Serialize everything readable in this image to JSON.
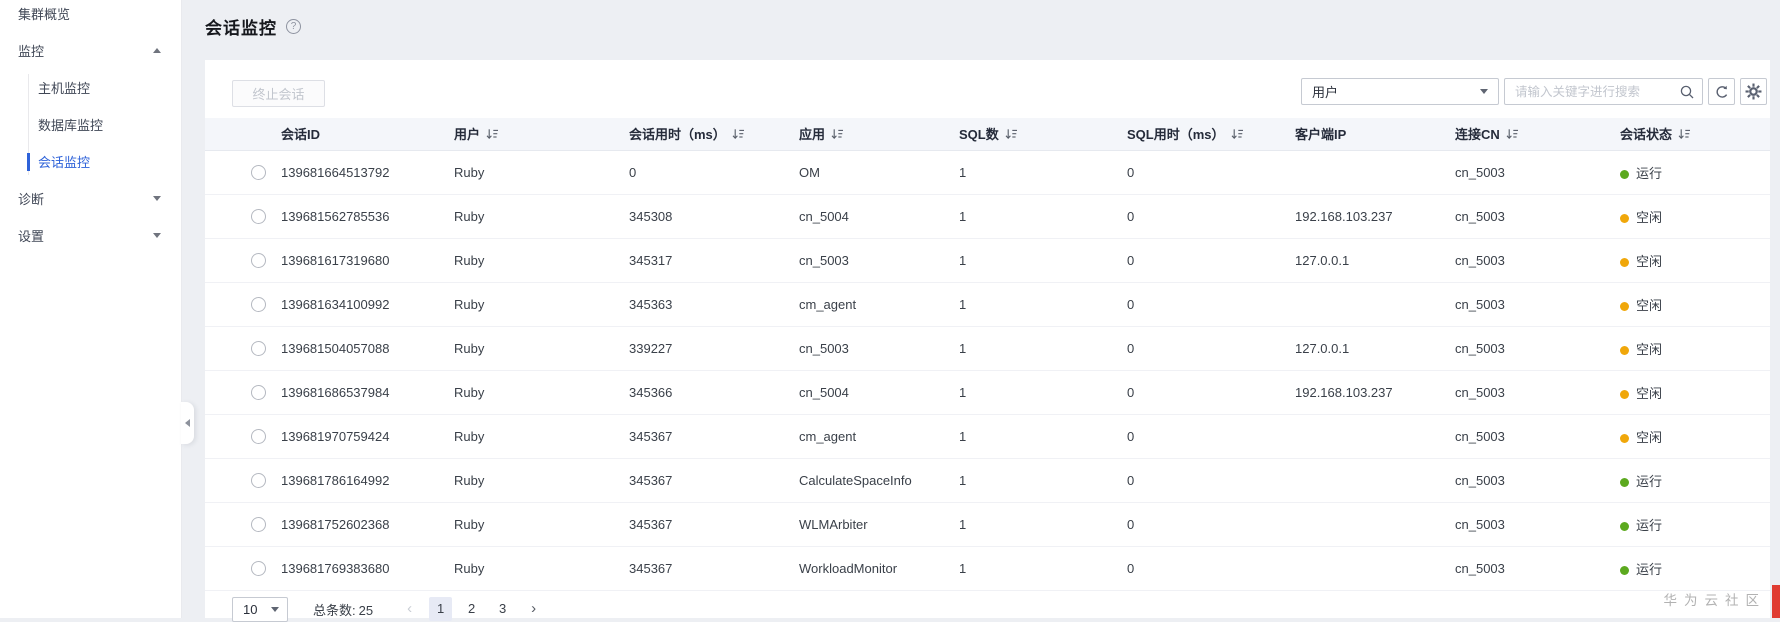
{
  "page": {
    "title": "会话监控"
  },
  "sidebar": {
    "items": [
      {
        "id": "cluster-overview",
        "label": "集群概览"
      },
      {
        "id": "monitoring",
        "label": "监控",
        "state": "expanded",
        "children": [
          {
            "id": "host-monitoring",
            "label": "主机监控"
          },
          {
            "id": "database-monitoring",
            "label": "数据库监控"
          },
          {
            "id": "session-monitoring",
            "label": "会话监控",
            "active": true
          }
        ]
      },
      {
        "id": "diagnosis",
        "label": "诊断",
        "state": "collapsed",
        "children": []
      },
      {
        "id": "settings",
        "label": "设置",
        "state": "collapsed",
        "children": []
      }
    ]
  },
  "toolbar": {
    "terminate_label": "终止会话",
    "filter_selected": "用户",
    "search_placeholder": "请输入关键字进行搜索"
  },
  "table": {
    "columns": [
      {
        "id": "session_id",
        "label": "会话ID",
        "sortable": false
      },
      {
        "id": "user",
        "label": "用户",
        "sortable": true
      },
      {
        "id": "session_time",
        "label": "会话用时（ms）",
        "sortable": true
      },
      {
        "id": "app",
        "label": "应用",
        "sortable": true
      },
      {
        "id": "sql_count",
        "label": "SQL数",
        "sortable": true
      },
      {
        "id": "sql_time",
        "label": "SQL用时（ms）",
        "sortable": true
      },
      {
        "id": "client_ip",
        "label": "客户端IP",
        "sortable": false
      },
      {
        "id": "cn",
        "label": "连接CN",
        "sortable": true
      },
      {
        "id": "status",
        "label": "会话状态",
        "sortable": true
      }
    ],
    "rows": [
      {
        "session_id": "139681664513792",
        "user": "Ruby",
        "session_time": "0",
        "app": "OM",
        "sql_count": "1",
        "sql_time": "0",
        "client_ip": "",
        "cn": "cn_5003",
        "status": "运行",
        "status_key": "running"
      },
      {
        "session_id": "139681562785536",
        "user": "Ruby",
        "session_time": "345308",
        "app": "cn_5004",
        "sql_count": "1",
        "sql_time": "0",
        "client_ip": "192.168.103.237",
        "cn": "cn_5003",
        "status": "空闲",
        "status_key": "idle"
      },
      {
        "session_id": "139681617319680",
        "user": "Ruby",
        "session_time": "345317",
        "app": "cn_5003",
        "sql_count": "1",
        "sql_time": "0",
        "client_ip": "127.0.0.1",
        "cn": "cn_5003",
        "status": "空闲",
        "status_key": "idle"
      },
      {
        "session_id": "139681634100992",
        "user": "Ruby",
        "session_time": "345363",
        "app": "cm_agent",
        "sql_count": "1",
        "sql_time": "0",
        "client_ip": "",
        "cn": "cn_5003",
        "status": "空闲",
        "status_key": "idle"
      },
      {
        "session_id": "139681504057088",
        "user": "Ruby",
        "session_time": "339227",
        "app": "cn_5003",
        "sql_count": "1",
        "sql_time": "0",
        "client_ip": "127.0.0.1",
        "cn": "cn_5003",
        "status": "空闲",
        "status_key": "idle"
      },
      {
        "session_id": "139681686537984",
        "user": "Ruby",
        "session_time": "345366",
        "app": "cn_5004",
        "sql_count": "1",
        "sql_time": "0",
        "client_ip": "192.168.103.237",
        "cn": "cn_5003",
        "status": "空闲",
        "status_key": "idle"
      },
      {
        "session_id": "139681970759424",
        "user": "Ruby",
        "session_time": "345367",
        "app": "cm_agent",
        "sql_count": "1",
        "sql_time": "0",
        "client_ip": "",
        "cn": "cn_5003",
        "status": "空闲",
        "status_key": "idle"
      },
      {
        "session_id": "139681786164992",
        "user": "Ruby",
        "session_time": "345367",
        "app": "CalculateSpaceInfo",
        "sql_count": "1",
        "sql_time": "0",
        "client_ip": "",
        "cn": "cn_5003",
        "status": "运行",
        "status_key": "running"
      },
      {
        "session_id": "139681752602368",
        "user": "Ruby",
        "session_time": "345367",
        "app": "WLMArbiter",
        "sql_count": "1",
        "sql_time": "0",
        "client_ip": "",
        "cn": "cn_5003",
        "status": "运行",
        "status_key": "running"
      },
      {
        "session_id": "139681769383680",
        "user": "Ruby",
        "session_time": "345367",
        "app": "WorkloadMonitor",
        "sql_count": "1",
        "sql_time": "0",
        "client_ip": "",
        "cn": "cn_5003",
        "status": "运行",
        "status_key": "running"
      }
    ]
  },
  "pagination": {
    "page_size": "10",
    "total_label": "总条数:",
    "total": "25",
    "prev_label": "‹",
    "next_label": "›",
    "pages": [
      "1",
      "2",
      "3"
    ],
    "active_page": "1"
  },
  "watermark": {
    "text": "华为云社区"
  },
  "colors": {
    "accent": "#2e62d9",
    "status_running": "#5ca91f",
    "status_idle": "#f0a70a"
  }
}
